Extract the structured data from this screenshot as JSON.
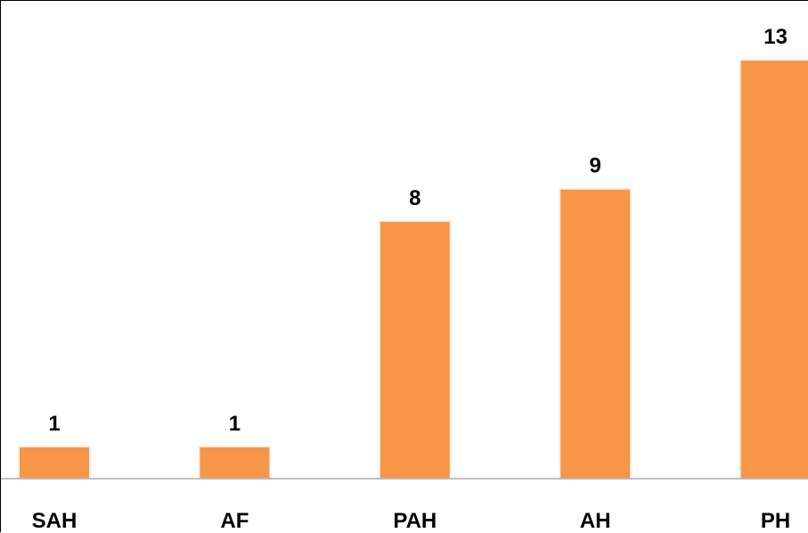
{
  "chart_data": {
    "type": "bar",
    "categories": [
      "SAH",
      "AF",
      "PAH",
      "AH",
      "PH"
    ],
    "values": [
      1,
      1,
      8,
      9,
      13
    ],
    "data_labels": [
      "1",
      "1",
      "8",
      "9",
      "13"
    ],
    "title": "",
    "xlabel": "",
    "ylabel": "",
    "ylim": [
      0,
      14
    ],
    "grid": false,
    "legend": "none",
    "colors": {
      "bar_fill": "#f79646",
      "bar_edge": "#f2f2f2",
      "axis": "#808080",
      "text": "#000000"
    }
  }
}
